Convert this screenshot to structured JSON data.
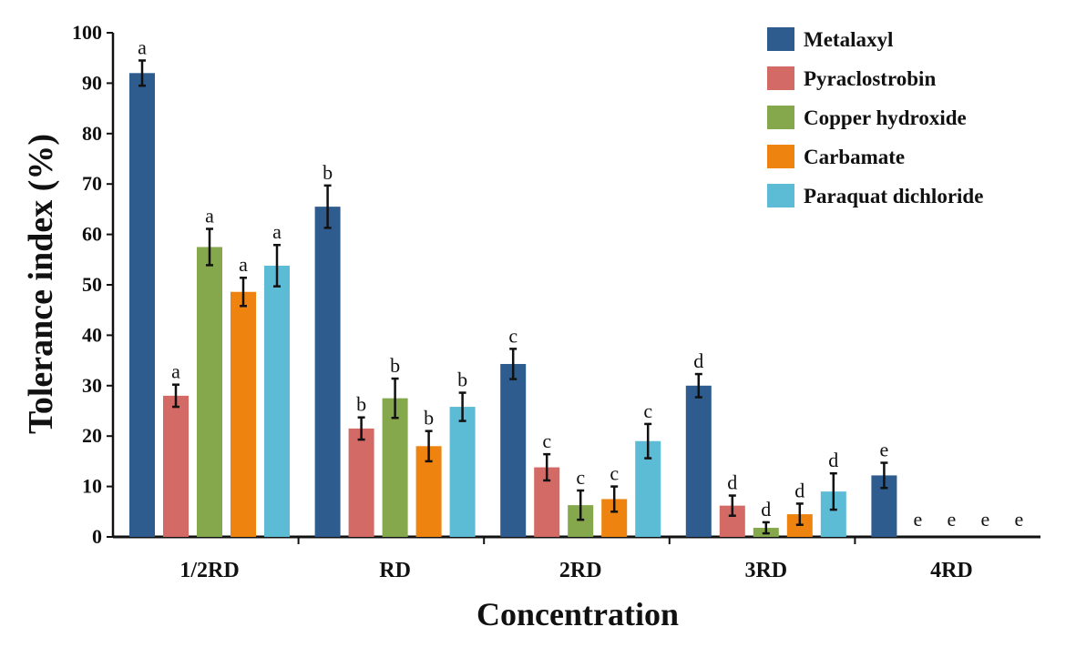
{
  "chart_data": {
    "type": "bar",
    "title": "",
    "xlabel": "Concentration",
    "ylabel": "Tolerance index (%)",
    "ylim": [
      0,
      100
    ],
    "yticks": [
      0,
      10,
      20,
      30,
      40,
      50,
      60,
      70,
      80,
      90,
      100
    ],
    "categories": [
      "1/2RD",
      "RD",
      "2RD",
      "3RD",
      "4RD"
    ],
    "legend_position": "top-right",
    "series": [
      {
        "name": "Metalaxyl",
        "color": "#2e5c8e",
        "values": [
          92,
          65.5,
          34.3,
          30,
          12.2
        ],
        "errors": [
          2.5,
          4.2,
          3.0,
          2.3,
          2.5
        ],
        "labels": [
          "a",
          "b",
          "c",
          "d",
          "e"
        ]
      },
      {
        "name": "Pyraclostrobin",
        "color": "#d46a66",
        "values": [
          28,
          21.5,
          13.8,
          6.2,
          0
        ],
        "errors": [
          2.2,
          2.2,
          2.6,
          2.0,
          0
        ],
        "labels": [
          "a",
          "b",
          "c",
          "d",
          "e"
        ]
      },
      {
        "name": "Copper hydroxide",
        "color": "#86a84d",
        "values": [
          57.5,
          27.5,
          6.3,
          1.8,
          0
        ],
        "errors": [
          3.6,
          3.9,
          2.9,
          1.1,
          0
        ],
        "labels": [
          "a",
          "b",
          "c",
          "d",
          "e"
        ]
      },
      {
        "name": "Carbamate",
        "color": "#ef830f",
        "values": [
          48.6,
          18,
          7.5,
          4.5,
          0
        ],
        "errors": [
          2.8,
          3.0,
          2.5,
          2.1,
          0
        ],
        "labels": [
          "a",
          "b",
          "c",
          "d",
          "e"
        ]
      },
      {
        "name": "Paraquat dichloride",
        "color": "#5cbcd6",
        "values": [
          53.8,
          25.8,
          19,
          9,
          0
        ],
        "errors": [
          4.1,
          2.8,
          3.4,
          3.6,
          0
        ],
        "labels": [
          "a",
          "b",
          "c",
          "d",
          "e"
        ]
      }
    ]
  }
}
